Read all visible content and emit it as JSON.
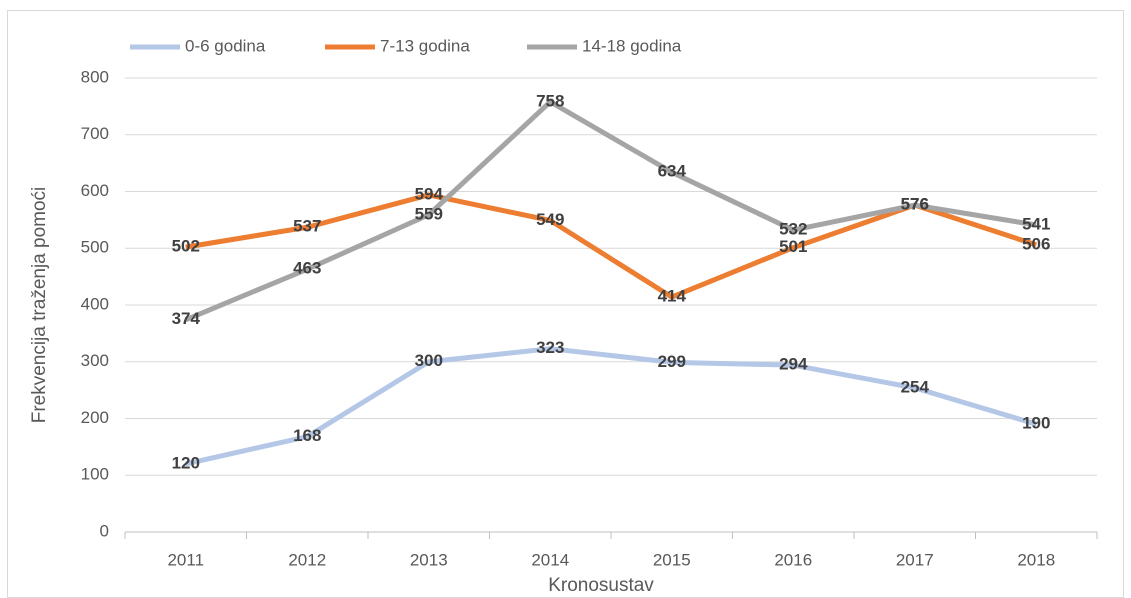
{
  "chart_data": {
    "type": "line",
    "x_label": "Kronosustav",
    "y_label": "Frekvencija traženja pomoći",
    "categories": [
      "2011",
      "2012",
      "2013",
      "2014",
      "2015",
      "2016",
      "2017",
      "2018"
    ],
    "series": [
      {
        "name": "0-6 godina",
        "color": "#b4c7e7",
        "values": [
          120,
          168,
          300,
          323,
          299,
          294,
          254,
          190
        ]
      },
      {
        "name": "7-13 godina",
        "color": "#ed7d31",
        "values": [
          502,
          537,
          594,
          549,
          414,
          501,
          576,
          506
        ]
      },
      {
        "name": "14-18 godina",
        "color": "#a5a5a5",
        "values": [
          374,
          463,
          559,
          758,
          634,
          532,
          576,
          541
        ]
      }
    ],
    "ylim": [
      0,
      800
    ],
    "yticks": [
      0,
      100,
      200,
      300,
      400,
      500,
      600,
      700,
      800
    ],
    "grid": true,
    "legend": "top"
  }
}
